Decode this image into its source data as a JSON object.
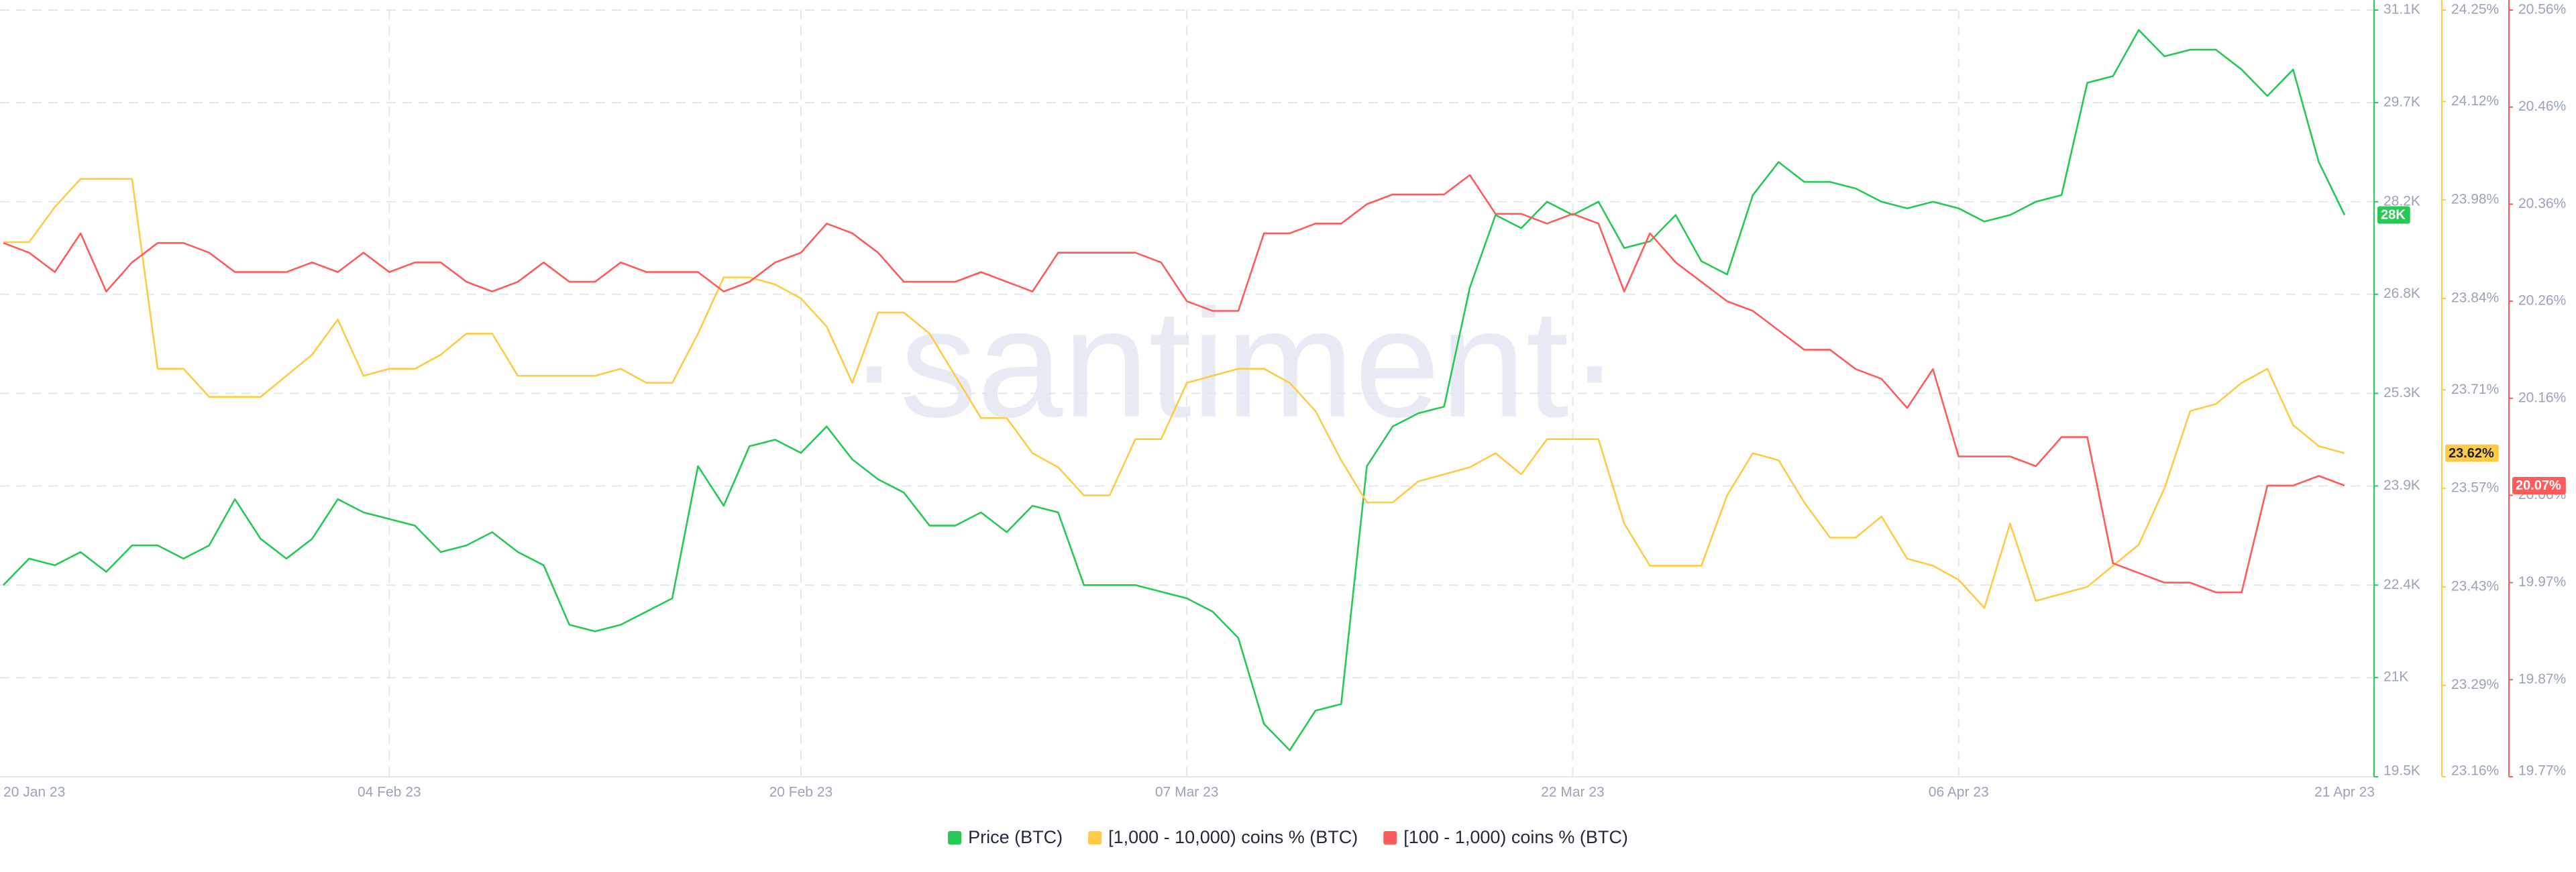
{
  "chart_data": {
    "type": "line",
    "watermark": "·santiment·",
    "x": [
      "2023-01-20",
      "2023-01-21",
      "2023-01-22",
      "2023-01-23",
      "2023-01-24",
      "2023-01-25",
      "2023-01-26",
      "2023-01-27",
      "2023-01-28",
      "2023-01-29",
      "2023-01-30",
      "2023-01-31",
      "2023-02-01",
      "2023-02-02",
      "2023-02-03",
      "2023-02-04",
      "2023-02-05",
      "2023-02-06",
      "2023-02-07",
      "2023-02-08",
      "2023-02-09",
      "2023-02-10",
      "2023-02-11",
      "2023-02-12",
      "2023-02-13",
      "2023-02-14",
      "2023-02-15",
      "2023-02-16",
      "2023-02-17",
      "2023-02-18",
      "2023-02-19",
      "2023-02-20",
      "2023-02-21",
      "2023-02-22",
      "2023-02-23",
      "2023-02-24",
      "2023-02-25",
      "2023-02-26",
      "2023-02-27",
      "2023-02-28",
      "2023-03-01",
      "2023-03-02",
      "2023-03-03",
      "2023-03-04",
      "2023-03-05",
      "2023-03-06",
      "2023-03-07",
      "2023-03-08",
      "2023-03-09",
      "2023-03-10",
      "2023-03-11",
      "2023-03-12",
      "2023-03-13",
      "2023-03-14",
      "2023-03-15",
      "2023-03-16",
      "2023-03-17",
      "2023-03-18",
      "2023-03-19",
      "2023-03-20",
      "2023-03-21",
      "2023-03-22",
      "2023-03-23",
      "2023-03-24",
      "2023-03-25",
      "2023-03-26",
      "2023-03-27",
      "2023-03-28",
      "2023-03-29",
      "2023-03-30",
      "2023-03-31",
      "2023-04-01",
      "2023-04-02",
      "2023-04-03",
      "2023-04-04",
      "2023-04-05",
      "2023-04-06",
      "2023-04-07",
      "2023-04-08",
      "2023-04-09",
      "2023-04-10",
      "2023-04-11",
      "2023-04-12",
      "2023-04-13",
      "2023-04-14",
      "2023-04-15",
      "2023-04-16",
      "2023-04-17",
      "2023-04-18",
      "2023-04-19",
      "2023-04-20",
      "2023-04-21"
    ],
    "xticks": [
      {
        "value": "2023-01-20",
        "label": "20 Jan 23"
      },
      {
        "value": "2023-02-04",
        "label": "04 Feb 23"
      },
      {
        "value": "2023-02-20",
        "label": "20 Feb 23"
      },
      {
        "value": "2023-03-07",
        "label": "07 Mar 23"
      },
      {
        "value": "2023-03-22",
        "label": "22 Mar 23"
      },
      {
        "value": "2023-04-06",
        "label": "06 Apr 23"
      },
      {
        "value": "2023-04-21",
        "label": "21 Apr 23"
      }
    ],
    "ylim": [
      19500,
      31100
    ],
    "yticks": [
      {
        "value": 19500,
        "label": "19.5K"
      },
      {
        "value": 21000,
        "label": "21K"
      },
      {
        "value": 22400,
        "label": "22.4K"
      },
      {
        "value": 23900,
        "label": "23.9K"
      },
      {
        "value": 25300,
        "label": "25.3K"
      },
      {
        "value": 26800,
        "label": "26.8K"
      },
      {
        "value": 28200,
        "label": "28.2K"
      },
      {
        "value": 29700,
        "label": "29.7K"
      },
      {
        "value": 31100,
        "label": "31.1K"
      }
    ],
    "y2lim": [
      23.16,
      24.25
    ],
    "y2ticks": [
      {
        "value": 23.16,
        "label": "23.16%"
      },
      {
        "value": 23.29,
        "label": "23.29%"
      },
      {
        "value": 23.43,
        "label": "23.43%"
      },
      {
        "value": 23.57,
        "label": "23.57%"
      },
      {
        "value": 23.71,
        "label": "23.71%"
      },
      {
        "value": 23.84,
        "label": "23.84%"
      },
      {
        "value": 23.98,
        "label": "23.98%"
      },
      {
        "value": 24.12,
        "label": "24.12%"
      },
      {
        "value": 24.25,
        "label": "24.25%"
      }
    ],
    "y3lim": [
      19.77,
      20.56
    ],
    "y3ticks": [
      {
        "value": 19.77,
        "label": "19.77%"
      },
      {
        "value": 19.87,
        "label": "19.87%"
      },
      {
        "value": 19.97,
        "label": "19.97%"
      },
      {
        "value": 20.06,
        "label": "20.06%"
      },
      {
        "value": 20.16,
        "label": "20.16%"
      },
      {
        "value": 20.26,
        "label": "20.26%"
      },
      {
        "value": 20.36,
        "label": "20.36%"
      },
      {
        "value": 20.46,
        "label": "20.46%"
      },
      {
        "value": 20.56,
        "label": "20.56%"
      }
    ],
    "grid": true,
    "legend": "bottom",
    "series": [
      {
        "name": "Price (BTC)",
        "color": "#26c953",
        "axis": "y",
        "last_value_label": "28K",
        "values": [
          22400,
          22800,
          22700,
          22900,
          22600,
          23000,
          23000,
          22800,
          23000,
          23700,
          23100,
          22800,
          23100,
          23700,
          23500,
          23400,
          23300,
          22900,
          23000,
          23200,
          22900,
          22700,
          21800,
          21700,
          21800,
          22000,
          22200,
          24200,
          23600,
          24500,
          24600,
          24400,
          24800,
          24300,
          24000,
          23800,
          23300,
          23300,
          23500,
          23200,
          23600,
          23500,
          22400,
          22400,
          22400,
          22300,
          22200,
          22000,
          21600,
          20300,
          19900,
          20500,
          20600,
          24200,
          24800,
          25000,
          25100,
          26900,
          28000,
          27800,
          28200,
          28000,
          28200,
          27500,
          27600,
          28000,
          27300,
          27100,
          28300,
          28800,
          28500,
          28500,
          28400,
          28200,
          28100,
          28200,
          28100,
          27900,
          28000,
          28200,
          28300,
          30000,
          30100,
          30800,
          30400,
          30500,
          30500,
          30200,
          29800,
          30200,
          28800,
          28000
        ]
      },
      {
        "name": "[1,000 - 10,000) coins % (BTC)",
        "color": "#ffcb47",
        "axis": "y2",
        "last_value_label": "23.62%",
        "values": [
          23.92,
          23.92,
          23.97,
          24.01,
          24.01,
          24.01,
          23.74,
          23.74,
          23.7,
          23.7,
          23.7,
          23.73,
          23.76,
          23.81,
          23.73,
          23.74,
          23.74,
          23.76,
          23.79,
          23.79,
          23.73,
          23.73,
          23.73,
          23.73,
          23.74,
          23.72,
          23.72,
          23.79,
          23.87,
          23.87,
          23.86,
          23.84,
          23.8,
          23.72,
          23.82,
          23.82,
          23.79,
          23.73,
          23.67,
          23.67,
          23.62,
          23.6,
          23.56,
          23.56,
          23.64,
          23.64,
          23.72,
          23.73,
          23.74,
          23.74,
          23.72,
          23.68,
          23.61,
          23.55,
          23.55,
          23.58,
          23.59,
          23.6,
          23.62,
          23.59,
          23.64,
          23.64,
          23.64,
          23.52,
          23.46,
          23.46,
          23.46,
          23.56,
          23.62,
          23.61,
          23.55,
          23.5,
          23.5,
          23.53,
          23.47,
          23.46,
          23.44,
          23.4,
          23.52,
          23.41,
          23.42,
          23.43,
          23.46,
          23.49,
          23.57,
          23.68,
          23.69,
          23.72,
          23.74,
          23.66,
          23.63,
          23.62
        ]
      },
      {
        "name": "[100 - 1,000) coins % (BTC)",
        "color": "#ff5b5b",
        "axis": "y3",
        "last_value_label": "20.07%",
        "values": [
          20.32,
          20.31,
          20.29,
          20.33,
          20.27,
          20.3,
          20.32,
          20.32,
          20.31,
          20.29,
          20.29,
          20.29,
          20.3,
          20.29,
          20.31,
          20.29,
          20.3,
          20.3,
          20.28,
          20.27,
          20.28,
          20.3,
          20.28,
          20.28,
          20.3,
          20.29,
          20.29,
          20.29,
          20.27,
          20.28,
          20.3,
          20.31,
          20.34,
          20.33,
          20.31,
          20.28,
          20.28,
          20.28,
          20.29,
          20.28,
          20.27,
          20.31,
          20.31,
          20.31,
          20.31,
          20.3,
          20.26,
          20.25,
          20.25,
          20.33,
          20.33,
          20.34,
          20.34,
          20.36,
          20.37,
          20.37,
          20.37,
          20.39,
          20.35,
          20.35,
          20.34,
          20.35,
          20.34,
          20.27,
          20.33,
          20.3,
          20.28,
          20.26,
          20.25,
          20.23,
          20.21,
          20.21,
          20.19,
          20.18,
          20.15,
          20.19,
          20.1,
          20.1,
          20.1,
          20.09,
          20.12,
          20.12,
          19.99,
          19.98,
          19.97,
          19.97,
          19.96,
          19.96,
          20.07,
          20.07,
          20.08,
          20.07
        ]
      }
    ]
  }
}
